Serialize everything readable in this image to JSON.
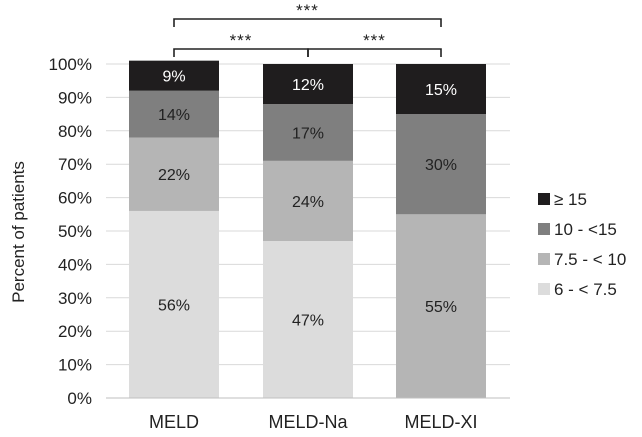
{
  "chart_data": {
    "type": "bar",
    "stacked": true,
    "ylabel": "Percent of patients",
    "ylim": [
      0,
      100
    ],
    "yticks": [
      "0%",
      "10%",
      "20%",
      "30%",
      "40%",
      "50%",
      "60%",
      "70%",
      "80%",
      "90%",
      "100%"
    ],
    "categories": [
      "MELD",
      "MELD-Na",
      "MELD-XI"
    ],
    "grid": true,
    "legend_position": "right",
    "series": [
      {
        "name": "6 - < 7.5",
        "color": "#dcdcdc",
        "values": [
          56,
          47,
          0
        ],
        "labels": [
          "56%",
          "47%",
          ""
        ]
      },
      {
        "name": "7.5 - < 10",
        "color": "#b5b5b5",
        "values": [
          22,
          24,
          55
        ],
        "labels": [
          "22%",
          "24%",
          "55%"
        ]
      },
      {
        "name": "10 - <15",
        "color": "#7f7f7f",
        "values": [
          14,
          17,
          30
        ],
        "labels": [
          "14%",
          "17%",
          "30%"
        ]
      },
      {
        "name": "≥ 15",
        "color": "#1f1d1e",
        "values": [
          9,
          12,
          15
        ],
        "labels": [
          "9%",
          "12%",
          "15%"
        ]
      }
    ],
    "annotations": [
      {
        "from": "MELD",
        "to": "MELD-XI",
        "label": "***",
        "level": 2
      },
      {
        "from": "MELD",
        "to": "MELD-Na",
        "label": "***",
        "level": 1
      },
      {
        "from": "MELD-Na",
        "to": "MELD-XI",
        "label": "***",
        "level": 1
      }
    ]
  }
}
